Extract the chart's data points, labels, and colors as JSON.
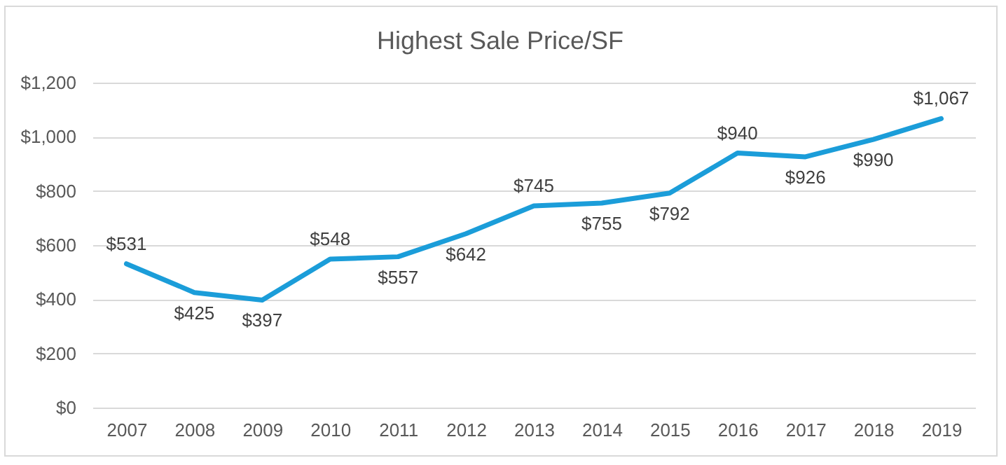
{
  "chart_data": {
    "type": "line",
    "title": "Highest Sale Price/SF",
    "categories": [
      "2007",
      "2008",
      "2009",
      "2010",
      "2011",
      "2012",
      "2013",
      "2014",
      "2015",
      "2016",
      "2017",
      "2018",
      "2019"
    ],
    "series": [
      {
        "color": "#1b9dd9",
        "values": [
          531,
          425,
          397,
          548,
          557,
          642,
          745,
          755,
          792,
          940,
          926,
          990,
          1067
        ],
        "value_labels": [
          "$531",
          "$425",
          "$397",
          "$548",
          "$557",
          "$642",
          "$745",
          "$755",
          "$792",
          "$940",
          "$926",
          "$990",
          "$1,067"
        ]
      }
    ],
    "ylim": [
      0,
      1200
    ],
    "yticks": [
      {
        "value": 0,
        "label": "$0"
      },
      {
        "value": 200,
        "label": "$200"
      },
      {
        "value": 400,
        "label": "$400"
      },
      {
        "value": 600,
        "label": "$600"
      },
      {
        "value": 800,
        "label": "$800"
      },
      {
        "value": 1000,
        "label": "$1,000"
      },
      {
        "value": 1200,
        "label": "$1,200"
      }
    ],
    "grid": "y"
  }
}
